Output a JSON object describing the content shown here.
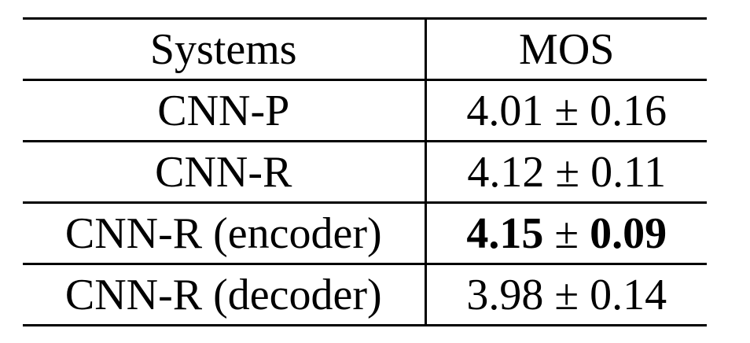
{
  "table": {
    "headers": [
      "Systems",
      "MOS"
    ],
    "rows": [
      {
        "system": "CNN-P",
        "mean": "4.01",
        "pm": "±",
        "std": "0.16",
        "best": false
      },
      {
        "system": "CNN-R",
        "mean": "4.12",
        "pm": "±",
        "std": "0.11",
        "best": false
      },
      {
        "system": "CNN-R (encoder)",
        "mean": "4.15",
        "pm": "±",
        "std": "0.09",
        "best": true
      },
      {
        "system": "CNN-R (decoder)",
        "mean": "3.98",
        "pm": "±",
        "std": "0.14",
        "best": false
      }
    ]
  }
}
